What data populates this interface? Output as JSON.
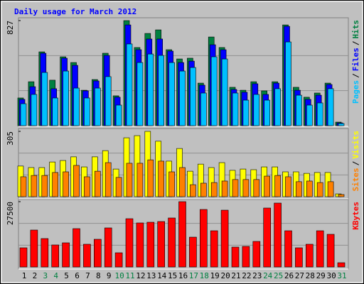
{
  "title": "Daily usage for March 2012",
  "chart_data": [
    {
      "type": "bar",
      "ylim": [
        0,
        827
      ],
      "yticks": [
        827
      ],
      "legend_separator": "/",
      "series": [
        {
          "name": "Hits",
          "color": "#008040",
          "values": [
            218,
            346,
            581,
            358,
            542,
            497,
            279,
            363,
            570,
            235,
            827,
            615,
            726,
            754,
            598,
            525,
            531,
            335,
            698,
            615,
            302,
            279,
            346,
            274,
            346,
            793,
            302,
            224,
            257,
            335,
            28
          ]
        },
        {
          "name": "Files",
          "color": "#0000ff",
          "values": [
            207,
            307,
            570,
            291,
            531,
            475,
            274,
            352,
            553,
            224,
            793,
            598,
            682,
            682,
            587,
            497,
            508,
            319,
            637,
            598,
            285,
            263,
            330,
            246,
            335,
            782,
            279,
            207,
            240,
            324,
            22
          ]
        },
        {
          "name": "Pages",
          "color": "#00c0ff",
          "values": [
            173,
            246,
            419,
            218,
            430,
            296,
            218,
            296,
            386,
            162,
            643,
            497,
            564,
            553,
            497,
            430,
            458,
            257,
            542,
            525,
            257,
            201,
            246,
            201,
            291,
            659,
            240,
            162,
            179,
            291,
            17
          ]
        }
      ]
    },
    {
      "type": "bar",
      "ylim": [
        0,
        305
      ],
      "yticks": [
        305
      ],
      "legend_separator": "/",
      "series": [
        {
          "name": "Visits",
          "color": "#ffff00",
          "values": [
            143,
            136,
            136,
            162,
            169,
            186,
            139,
            186,
            215,
            129,
            275,
            285,
            305,
            259,
            166,
            225,
            119,
            152,
            136,
            159,
            123,
            129,
            126,
            139,
            139,
            116,
            116,
            109,
            113,
            113,
            13
          ]
        },
        {
          "name": "Sites",
          "color": "#ff8000",
          "values": [
            93,
            99,
            99,
            113,
            116,
            146,
            93,
            119,
            159,
            90,
            156,
            156,
            172,
            166,
            116,
            136,
            56,
            63,
            66,
            73,
            80,
            80,
            80,
            96,
            99,
            93,
            70,
            73,
            66,
            70,
            10
          ]
        }
      ]
    },
    {
      "type": "bar",
      "ylim": [
        0,
        27500
      ],
      "yticks": [
        27500
      ],
      "categories": [
        1,
        2,
        3,
        4,
        5,
        6,
        7,
        8,
        9,
        10,
        11,
        12,
        13,
        14,
        15,
        16,
        17,
        18,
        19,
        20,
        21,
        22,
        23,
        24,
        25,
        26,
        27,
        28,
        29,
        30,
        31
      ],
      "category_colors": [
        "#000000",
        "#000000",
        "#008040",
        "#008040",
        "#000000",
        "#000000",
        "#000000",
        "#000000",
        "#000000",
        "#008040",
        "#008040",
        "#000000",
        "#000000",
        "#000000",
        "#000000",
        "#000000",
        "#008040",
        "#008040",
        "#000000",
        "#000000",
        "#000000",
        "#000000",
        "#000000",
        "#008040",
        "#008040",
        "#000000",
        "#000000",
        "#000000",
        "#000000",
        "#000000",
        "#008040"
      ],
      "series": [
        {
          "name": "KBytes",
          "color": "#ff0000",
          "values": [
            8070,
            15543,
            11956,
            9266,
            10163,
            16141,
            9565,
            11657,
            16440,
            5978,
            20325,
            18532,
            18831,
            19130,
            20624,
            27500,
            12554,
            24211,
            15244,
            23912,
            8369,
            8668,
            10760,
            24809,
            26901,
            15244,
            8070,
            9565,
            15244,
            13749,
            1793
          ]
        }
      ]
    }
  ]
}
